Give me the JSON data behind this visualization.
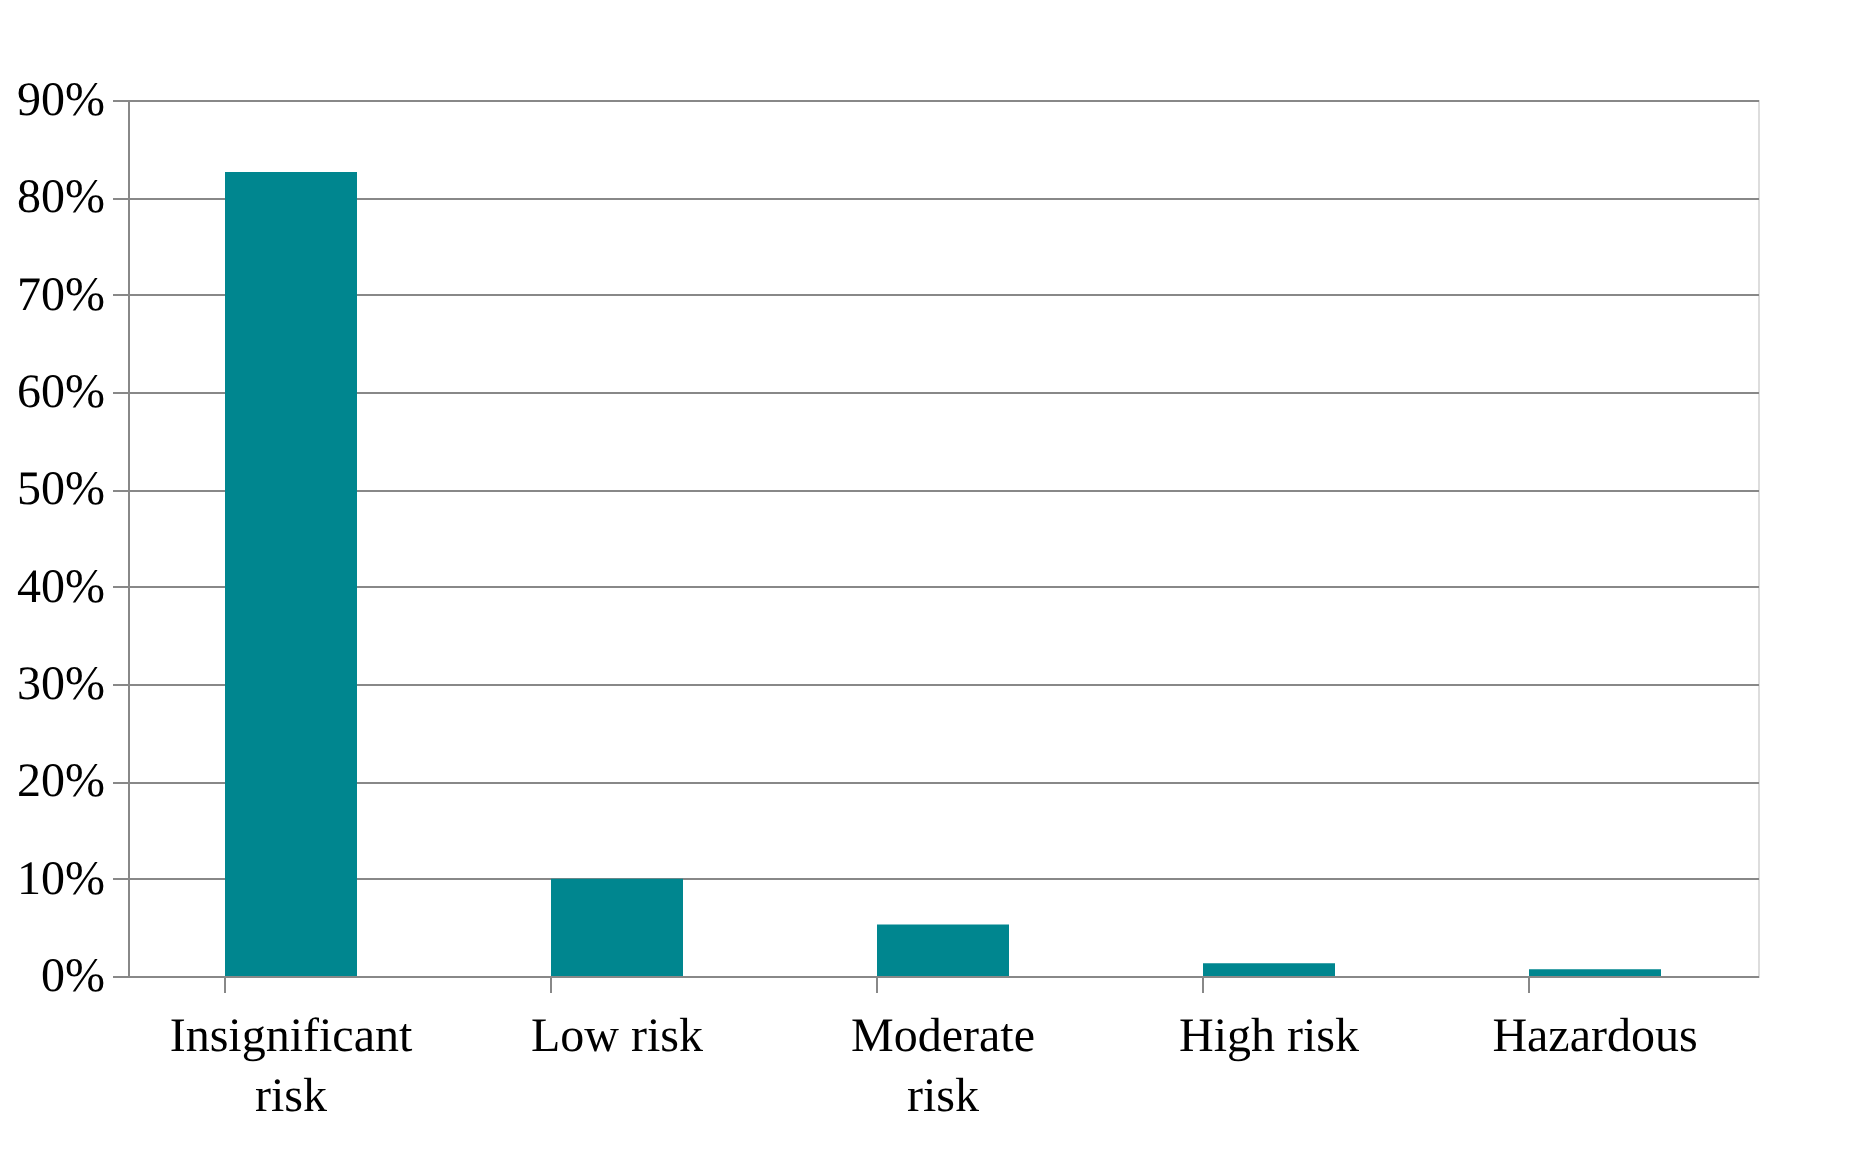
{
  "chart_data": {
    "type": "bar",
    "categories": [
      "Insignificant risk",
      "Low risk",
      "Moderate risk",
      "High risk",
      "Hazardous"
    ],
    "values": [
      82.6,
      10.0,
      5.3,
      1.3,
      0.7
    ],
    "color": "#00868f",
    "ylim": [
      0,
      90
    ],
    "yticks": [
      {
        "value": 0,
        "label": "0%"
      },
      {
        "value": 10,
        "label": "10%"
      },
      {
        "value": 20,
        "label": "20%"
      },
      {
        "value": 30,
        "label": "30%"
      },
      {
        "value": 40,
        "label": "40%"
      },
      {
        "value": 50,
        "label": "50%"
      },
      {
        "value": 60,
        "label": "60%"
      },
      {
        "value": 70,
        "label": "70%"
      },
      {
        "value": 80,
        "label": "80%"
      },
      {
        "value": 90,
        "label": "90%"
      }
    ],
    "grid": "y"
  }
}
